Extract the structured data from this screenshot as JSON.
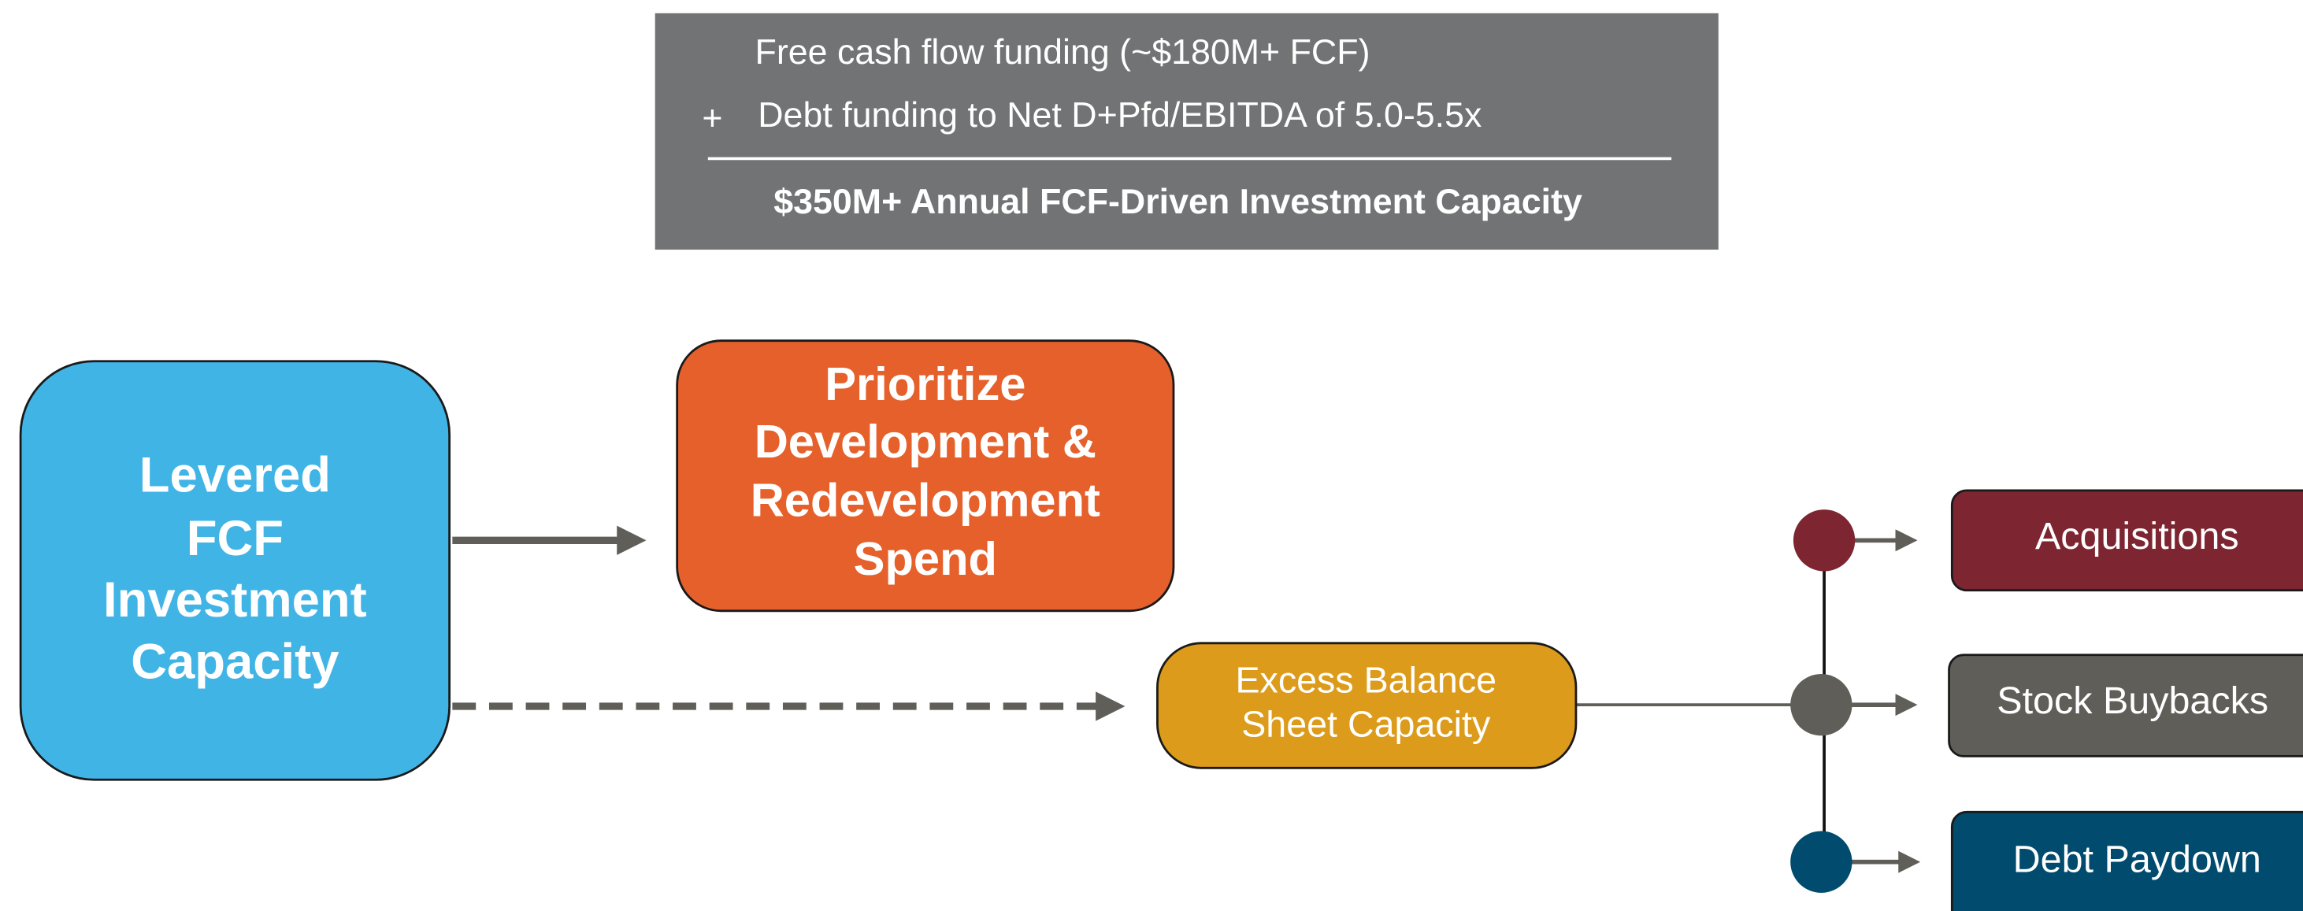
{
  "header": {
    "line1": "Free cash flow funding (~$180M+ FCF)",
    "operator": "+",
    "line2": "Debt funding to Net D+Pfd/EBITDA of 5.0-5.5x",
    "total": "$350M+ Annual FCF-Driven Investment Capacity"
  },
  "nodes": [
    {
      "label": [
        "Levered",
        "FCF",
        "Investment",
        "Capacity"
      ]
    },
    {
      "label": [
        "Prioritize",
        "Development &",
        "Redevelopment",
        "Spend"
      ]
    },
    {
      "label": [
        "Excess Balance",
        "Sheet Capacity"
      ]
    },
    {
      "label": [
        "Acquisitions"
      ]
    },
    {
      "label": [
        "Stock Buybacks"
      ]
    },
    {
      "label": [
        "Debt Paydown"
      ]
    }
  ]
}
